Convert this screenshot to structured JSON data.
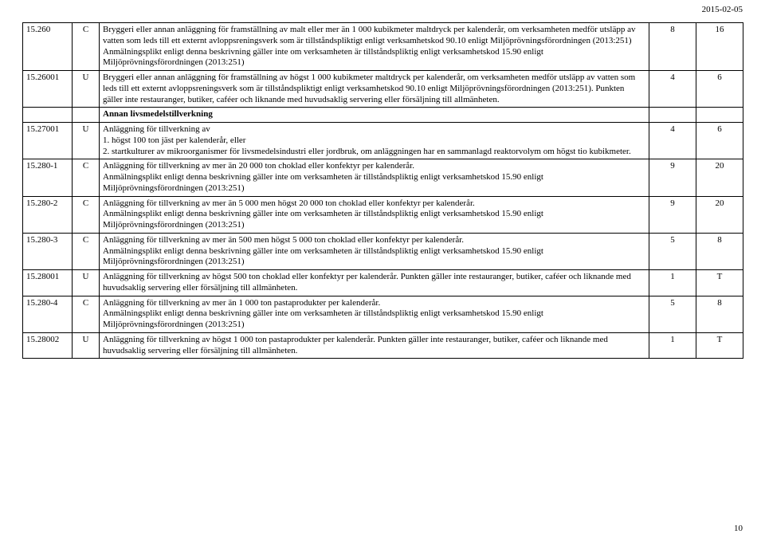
{
  "date": "2015-02-05",
  "page": "10",
  "rows": [
    {
      "code": "15.260",
      "cls": "C",
      "desc": "Bryggeri eller annan anläggning för framställning av malt eller mer än 1 000 kubikmeter maltdryck per kalenderår, om verksamheten medför utsläpp av vatten som leds till ett externt avloppsreningsverk som är tillståndspliktigt enligt verksamhetskod 90.10 enligt Miljöprövningsförordningen (2013:251)\nAnmälningsplikt enligt denna beskrivning gäller inte om verksamheten är tillståndspliktig enligt verksamhetskod 15.90 enligt Miljöprövningsförordningen (2013:251)",
      "n1": "8",
      "n2": "16"
    },
    {
      "code": "15.26001",
      "cls": "U",
      "desc": "Bryggeri eller annan anläggning för framställning av högst 1 000 kubikmeter maltdryck per kalenderår, om verksamheten medför utsläpp av vatten som leds till ett externt avloppsreningsverk som är tillståndspliktigt enligt verksamhetskod 90.10 enligt Miljöprövningsförordningen (2013:251). Punkten gäller inte restauranger, butiker, caféer och liknande med huvudsaklig servering eller försäljning till allmänheten.",
      "n1": "4",
      "n2": "6"
    },
    {
      "subhead": true,
      "desc": "Annan livsmedelstillverkning"
    },
    {
      "code": "15.27001",
      "cls": "U",
      "desc": "Anläggning för tillverkning av\n1. högst 100 ton jäst per kalenderår, eller\n2. startkulturer av mikroorganismer för livsmedelsindustri eller jordbruk, om anläggningen har en sammanlagd reaktorvolym om högst tio kubikmeter.",
      "n1": "4",
      "n2": "6"
    },
    {
      "code": "15.280-1",
      "cls": "C",
      "desc": "Anläggning för tillverkning av mer än 20 000 ton choklad eller konfektyr per kalenderår.\nAnmälningsplikt enligt denna beskrivning gäller inte om verksamheten är tillståndspliktig enligt verksamhetskod 15.90 enligt Miljöprövningsförordningen (2013:251)",
      "n1": "9",
      "n2": "20"
    },
    {
      "code": "15.280-2",
      "cls": "C",
      "desc": "Anläggning för tillverkning av mer än 5 000 men högst 20 000 ton choklad eller konfektyr per kalenderår.\nAnmälningsplikt enligt denna beskrivning gäller inte om verksamheten är tillståndspliktig enligt verksamhetskod 15.90 enligt Miljöprövningsförordningen (2013:251)",
      "n1": "9",
      "n2": "20"
    },
    {
      "code": "15.280-3",
      "cls": "C",
      "desc": "Anläggning för tillverkning av mer än 500 men högst 5 000 ton choklad eller konfektyr per kalenderår.\nAnmälningsplikt enligt denna beskrivning gäller inte om verksamheten är tillståndspliktig enligt verksamhetskod 15.90 enligt Miljöprövningsförordningen (2013:251)",
      "n1": "5",
      "n2": "8"
    },
    {
      "code": "15.28001",
      "cls": "U",
      "desc": "Anläggning för tillverkning av högst 500 ton choklad eller konfektyr per kalenderår. Punkten gäller inte restauranger, butiker, caféer och liknande med huvudsaklig servering eller försäljning till allmänheten.",
      "n1": "1",
      "n2": "T"
    },
    {
      "code": "15.280-4",
      "cls": "C",
      "desc": "Anläggning för tillverkning av mer än 1 000 ton pastaprodukter per kalenderår.\nAnmälningsplikt enligt denna beskrivning gäller inte om verksamheten är tillståndspliktig enligt verksamhetskod 15.90 enligt Miljöprövningsförordningen (2013:251)",
      "n1": "5",
      "n2": "8"
    },
    {
      "code": "15.28002",
      "cls": "U",
      "desc": "Anläggning för tillverkning av högst 1 000 ton pastaprodukter per kalenderår. Punkten gäller inte restauranger, butiker, caféer och liknande med huvudsaklig servering eller försäljning till allmänheten.",
      "n1": "1",
      "n2": "T"
    }
  ]
}
